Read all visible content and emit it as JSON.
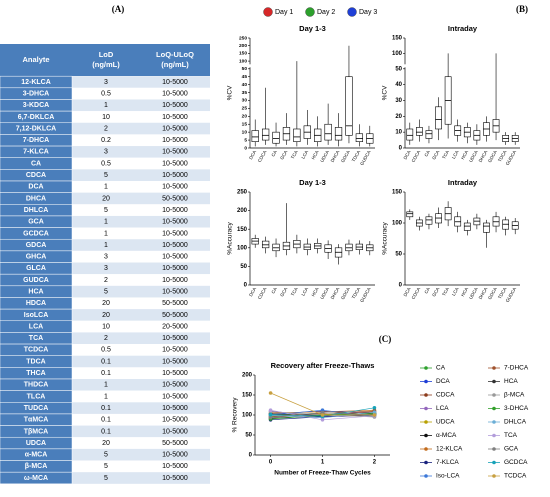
{
  "panels": [
    "(A)",
    "(B)",
    "(C)"
  ],
  "table": {
    "header": [
      [
        "Analyte"
      ],
      [
        "LoD",
        "(ng/mL)"
      ],
      [
        "LoQ-ULoQ",
        "(ng/mL)"
      ]
    ],
    "rows": [
      [
        "12-KLCA",
        3,
        "10-5000"
      ],
      [
        "3-DHCA",
        0.5,
        "10-5000"
      ],
      [
        "3-KDCA",
        1,
        "10-5000"
      ],
      [
        "6,7-DKLCA",
        10,
        "10-5000"
      ],
      [
        "7,12-DKLCA",
        2,
        "10-5000"
      ],
      [
        "7-DHCA",
        0.2,
        "10-5000"
      ],
      [
        "7-KLCA",
        3,
        "10-5000"
      ],
      [
        "CA",
        0.5,
        "10-5000"
      ],
      [
        "CDCA",
        5,
        "10-5000"
      ],
      [
        "DCA",
        1,
        "10-5000"
      ],
      [
        "DHCA",
        20,
        "50-5000"
      ],
      [
        "DHLCA",
        5,
        "10-5000"
      ],
      [
        "GCA",
        1,
        "10-5000"
      ],
      [
        "GCDCA",
        1,
        "10-5000"
      ],
      [
        "GDCA",
        1,
        "10-5000"
      ],
      [
        "GHCA",
        3,
        "10-5000"
      ],
      [
        "GLCA",
        3,
        "10-5000"
      ],
      [
        "GUDCA",
        2,
        "10-5000"
      ],
      [
        "HCA",
        5,
        "10-5000"
      ],
      [
        "HDCA",
        20,
        "50-5000"
      ],
      [
        "IsoLCA",
        20,
        "50-5000"
      ],
      [
        "LCA",
        10,
        "20-5000"
      ],
      [
        "TCA",
        2,
        "10-5000"
      ],
      [
        "TCDCA",
        0.5,
        "10-5000"
      ],
      [
        "TDCA",
        0.1,
        "10-5000"
      ],
      [
        "THCA",
        0.1,
        "10-5000"
      ],
      [
        "THDCA",
        1,
        "10-5000"
      ],
      [
        "TLCA",
        1,
        "10-5000"
      ],
      [
        "TUDCA",
        0.1,
        "10-5000"
      ],
      [
        "TαMCA",
        0.1,
        "10-5000"
      ],
      [
        "TβMCA",
        0.1,
        "10-5000"
      ],
      [
        "UDCA",
        20,
        "50-5000"
      ],
      [
        "α-MCA",
        5,
        "10-5000"
      ],
      [
        "β-MCA",
        5,
        "10-5000"
      ],
      [
        "ω-MCA",
        5,
        "10-5000"
      ]
    ]
  },
  "day_legend": [
    {
      "name": "Day 1",
      "color": "#d62728"
    },
    {
      "name": "Day 2",
      "color": "#2ca02c"
    },
    {
      "name": "Day 3",
      "color": "#1f3fd6"
    }
  ],
  "chart_data": [
    {
      "type": "box",
      "title": "Day 1-3",
      "ylabel": "%CV",
      "ylim": [
        0,
        250
      ],
      "ybreak": 50,
      "yticks": [
        0,
        5,
        10,
        15,
        20,
        25,
        30,
        35,
        40,
        45,
        50,
        100,
        150,
        200,
        250
      ],
      "categories": [
        "DCA",
        "CDCA",
        "CA",
        "GCA",
        "TCA",
        "LCA",
        "HCA",
        "UDCA",
        "DHCA",
        "GDCA",
        "TDCA",
        "GUDCA"
      ],
      "boxes": [
        [
          1,
          4,
          7,
          11,
          18
        ],
        [
          2,
          5,
          8,
          12,
          38
        ],
        [
          1,
          3,
          6,
          10,
          16
        ],
        [
          2,
          5,
          9,
          13,
          22
        ],
        [
          1,
          4,
          7,
          12,
          100
        ],
        [
          2,
          6,
          10,
          14,
          24
        ],
        [
          1,
          4,
          8,
          12,
          20
        ],
        [
          2,
          5,
          9,
          15,
          28
        ],
        [
          1,
          5,
          8,
          13,
          22
        ],
        [
          3,
          8,
          14,
          45,
          200
        ],
        [
          1,
          4,
          6,
          9,
          15
        ],
        [
          1,
          3,
          6,
          9,
          14
        ]
      ]
    },
    {
      "type": "box",
      "title": "Intraday",
      "ylabel": "%CV",
      "ylim": [
        0,
        150
      ],
      "ybreak": 50,
      "yticks": [
        0,
        10,
        20,
        30,
        40,
        50,
        100,
        150
      ],
      "categories": [
        "DCA",
        "CDCA",
        "CA",
        "GCA",
        "TCA",
        "LCA",
        "HCA",
        "UDCA",
        "DHCA",
        "GDCA",
        "TDCA",
        "GUDCA"
      ],
      "boxes": [
        [
          2,
          5,
          8,
          12,
          16
        ],
        [
          4,
          8,
          10,
          13,
          18
        ],
        [
          3,
          6,
          9,
          11,
          14
        ],
        [
          5,
          12,
          18,
          26,
          32
        ],
        [
          6,
          15,
          30,
          45,
          100
        ],
        [
          4,
          8,
          11,
          14,
          18
        ],
        [
          3,
          7,
          10,
          13,
          16
        ],
        [
          2,
          5,
          8,
          11,
          15
        ],
        [
          4,
          8,
          12,
          16,
          20
        ],
        [
          5,
          10,
          14,
          18,
          100
        ],
        [
          2,
          4,
          6,
          8,
          10
        ],
        [
          2,
          4,
          6,
          8,
          10
        ]
      ]
    },
    {
      "type": "box",
      "title": "Day 1-3",
      "ylabel": "%Accuracy",
      "ylim": [
        0,
        250
      ],
      "yticks": [
        0,
        50,
        100,
        150,
        200,
        250
      ],
      "categories": [
        "DCA",
        "CDCA",
        "CA",
        "GCA",
        "TCA",
        "LCA",
        "HCA",
        "UDCA",
        "DHCA",
        "GDCA",
        "TDCA",
        "GUDCA"
      ],
      "boxes": [
        [
          100,
          110,
          118,
          125,
          135
        ],
        [
          85,
          100,
          108,
          118,
          130
        ],
        [
          75,
          92,
          100,
          110,
          125
        ],
        [
          80,
          95,
          105,
          115,
          220
        ],
        [
          85,
          100,
          110,
          120,
          135
        ],
        [
          80,
          95,
          102,
          110,
          125
        ],
        [
          85,
          98,
          105,
          112,
          125
        ],
        [
          70,
          88,
          98,
          108,
          120
        ],
        [
          55,
          75,
          88,
          100,
          110
        ],
        [
          80,
          92,
          100,
          110,
          122
        ],
        [
          82,
          95,
          102,
          110,
          120
        ],
        [
          80,
          92,
          100,
          108,
          118
        ]
      ]
    },
    {
      "type": "box",
      "title": "Intraday",
      "ylabel": "%Accuracy",
      "ylim": [
        0,
        150
      ],
      "yticks": [
        0,
        50,
        100,
        150
      ],
      "categories": [
        "DCA",
        "CDCA",
        "CA",
        "GCA",
        "TCA",
        "LCA",
        "HCA",
        "UDCA",
        "DHCA",
        "GDCA",
        "TDCA",
        "GUDCA"
      ],
      "boxes": [
        [
          105,
          110,
          115,
          118,
          122
        ],
        [
          88,
          95,
          100,
          105,
          110
        ],
        [
          90,
          98,
          105,
          110,
          115
        ],
        [
          92,
          100,
          108,
          115,
          125
        ],
        [
          95,
          105,
          115,
          125,
          135
        ],
        [
          85,
          95,
          102,
          110,
          118
        ],
        [
          80,
          88,
          95,
          100,
          105
        ],
        [
          90,
          97,
          103,
          108,
          115
        ],
        [
          60,
          85,
          95,
          100,
          105
        ],
        [
          85,
          95,
          102,
          110,
          118
        ],
        [
          80,
          90,
          98,
          105,
          110
        ],
        [
          82,
          90,
          96,
          102,
          108
        ]
      ]
    },
    {
      "type": "line",
      "title": "Recovery after Freeze-Thaws",
      "ylabel": "% Recovery",
      "xlabel": "Number of Freeze-Thaw Cycles",
      "x": [
        0,
        1,
        2
      ],
      "xlim": [
        -0.3,
        2.3
      ],
      "xticks": [
        0,
        1,
        2
      ],
      "ylim": [
        0,
        200
      ],
      "yticks": [
        0,
        50,
        100,
        150,
        200
      ],
      "series": [
        {
          "name": "CA",
          "color": "#2ca02c",
          "values": [
            98,
            105,
            102
          ]
        },
        {
          "name": "DCA",
          "color": "#1f3fd6",
          "values": [
            102,
            110,
            104
          ]
        },
        {
          "name": "CDCA",
          "color": "#8c3a1a",
          "values": [
            95,
            100,
            108
          ]
        },
        {
          "name": "LCA",
          "color": "#9467bd",
          "values": [
            110,
            95,
            100
          ]
        },
        {
          "name": "UDCA",
          "color": "#b8a000",
          "values": [
            100,
            102,
            98
          ]
        },
        {
          "name": "α-MCA",
          "color": "#111111",
          "values": [
            92,
            98,
            105
          ]
        },
        {
          "name": "12-KLCA",
          "color": "#c26a1b",
          "values": [
            105,
            108,
            112
          ]
        },
        {
          "name": "7-KLCA",
          "color": "#1a237e",
          "values": [
            88,
            96,
            100
          ]
        },
        {
          "name": "Iso-LCA",
          "color": "#3c78d8",
          "values": [
            100,
            112,
            96
          ]
        },
        {
          "name": "7-DHCA",
          "color": "#a0522d",
          "values": [
            96,
            104,
            110
          ]
        },
        {
          "name": "HCA",
          "color": "#333333",
          "values": [
            103,
            99,
            101
          ]
        },
        {
          "name": "β-MCA",
          "color": "#999999",
          "values": [
            108,
            101,
            95
          ]
        },
        {
          "name": "3-DHCA",
          "color": "#33a02c",
          "values": [
            90,
            100,
            104
          ]
        },
        {
          "name": "DHLCA",
          "color": "#6baed6",
          "values": [
            99,
            93,
            107
          ]
        },
        {
          "name": "TCA",
          "color": "#b39ddb",
          "values": [
            112,
            88,
            98
          ]
        },
        {
          "name": "GCA",
          "color": "#7f7f7f",
          "values": [
            94,
            106,
            100
          ]
        },
        {
          "name": "GCDCA",
          "color": "#17a2b8",
          "values": [
            101,
            97,
            118
          ]
        },
        {
          "name": "TCDCA",
          "color": "#c8a040",
          "values": [
            155,
            100,
            100
          ]
        }
      ]
    }
  ]
}
